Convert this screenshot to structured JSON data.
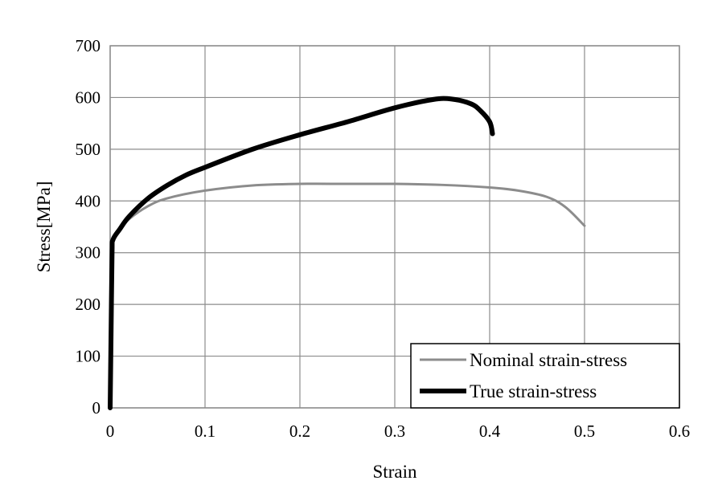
{
  "chart_data": {
    "type": "line",
    "title": "",
    "xlabel": "Strain",
    "ylabel": "Stress[MPa]",
    "xlim": [
      0,
      0.6
    ],
    "ylim": [
      0,
      700
    ],
    "x_ticks": [
      0,
      0.1,
      0.2,
      0.3,
      0.4,
      0.5,
      0.6
    ],
    "x_tick_labels": [
      "0",
      "0.1",
      "0.2",
      "0.3",
      "0.4",
      "0.5",
      "0.6"
    ],
    "y_ticks": [
      0,
      100,
      200,
      300,
      400,
      500,
      600,
      700
    ],
    "y_tick_labels": [
      "0",
      "100",
      "200",
      "300",
      "400",
      "500",
      "600",
      "700"
    ],
    "grid": true,
    "legend_position": "bottom-right",
    "colors": {
      "nominal": "#8c8c8c",
      "true": "#000000",
      "grid": "#8c8c8c"
    },
    "series": [
      {
        "name": "Nominal strain-stress",
        "x": [
          0,
          0.001,
          0.002,
          0.003,
          0.01,
          0.02,
          0.04,
          0.06,
          0.1,
          0.15,
          0.2,
          0.25,
          0.3,
          0.35,
          0.4,
          0.43,
          0.46,
          0.48,
          0.5
        ],
        "y": [
          0,
          150,
          300,
          325,
          345,
          365,
          390,
          405,
          420,
          430,
          433,
          433,
          433,
          431,
          426,
          420,
          408,
          388,
          352
        ]
      },
      {
        "name": "True strain-stress",
        "x": [
          0,
          0.001,
          0.002,
          0.003,
          0.01,
          0.02,
          0.04,
          0.06,
          0.08,
          0.1,
          0.15,
          0.2,
          0.25,
          0.3,
          0.34,
          0.36,
          0.38,
          0.39,
          0.4,
          0.403
        ],
        "y": [
          0,
          150,
          300,
          325,
          345,
          370,
          405,
          430,
          450,
          465,
          500,
          528,
          553,
          580,
          596,
          597,
          588,
          575,
          553,
          530
        ]
      }
    ]
  }
}
